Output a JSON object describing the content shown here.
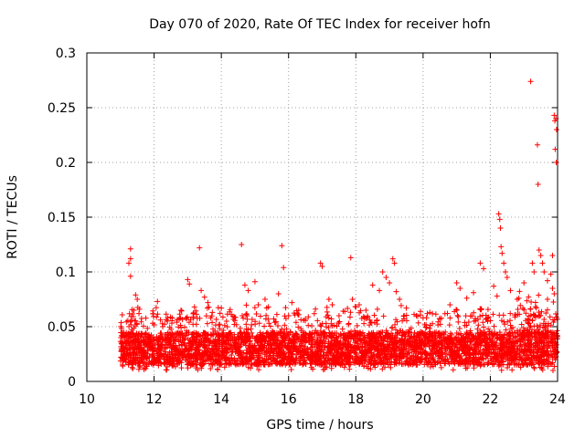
{
  "chart_data": {
    "type": "scatter",
    "title": "Day 070 of 2020, Rate Of TEC Index for receiver hofn",
    "xlabel": "GPS time / hours",
    "ylabel": "ROTI / TECUs",
    "xlim": [
      10,
      24
    ],
    "ylim": [
      0,
      0.3
    ],
    "xticks": [
      10,
      12,
      14,
      16,
      18,
      20,
      22,
      24
    ],
    "yticks": [
      0,
      0.05,
      0.1,
      0.15,
      0.2,
      0.25,
      0.3
    ],
    "xtick_labels": [
      "10",
      "12",
      "14",
      "16",
      "18",
      "20",
      "22",
      "24"
    ],
    "ytick_labels": [
      "0",
      "0.05",
      "0.1",
      "0.15",
      "0.2",
      "0.25",
      "0.3"
    ],
    "grid": true,
    "marker": "+",
    "series": [
      {
        "name": "ROTI",
        "color": "#ff0000",
        "dense_band": {
          "x_start": 11.0,
          "x_end": 24.0,
          "typical_low": 0.01,
          "typical_high": 0.05
        },
        "points": [
          [
            11.3,
            0.121
          ],
          [
            11.3,
            0.112
          ],
          [
            11.25,
            0.108
          ],
          [
            11.3,
            0.096
          ],
          [
            11.45,
            0.079
          ],
          [
            11.5,
            0.075
          ],
          [
            11.4,
            0.065
          ],
          [
            11.55,
            0.062
          ],
          [
            12.1,
            0.073
          ],
          [
            12.4,
            0.058
          ],
          [
            13.0,
            0.093
          ],
          [
            13.05,
            0.089
          ],
          [
            13.35,
            0.122
          ],
          [
            13.4,
            0.083
          ],
          [
            13.5,
            0.077
          ],
          [
            13.6,
            0.072
          ],
          [
            14.0,
            0.067
          ],
          [
            14.3,
            0.061
          ],
          [
            14.6,
            0.125
          ],
          [
            14.7,
            0.088
          ],
          [
            14.8,
            0.083
          ],
          [
            15.0,
            0.091
          ],
          [
            15.3,
            0.075
          ],
          [
            15.4,
            0.068
          ],
          [
            15.7,
            0.08
          ],
          [
            15.8,
            0.124
          ],
          [
            15.85,
            0.104
          ],
          [
            16.0,
            0.06
          ],
          [
            16.3,
            0.065
          ],
          [
            16.5,
            0.057
          ],
          [
            16.8,
            0.066
          ],
          [
            16.95,
            0.108
          ],
          [
            17.0,
            0.105
          ],
          [
            17.2,
            0.075
          ],
          [
            17.3,
            0.07
          ],
          [
            17.5,
            0.06
          ],
          [
            17.85,
            0.113
          ],
          [
            17.9,
            0.075
          ],
          [
            18.0,
            0.068
          ],
          [
            18.3,
            0.065
          ],
          [
            18.5,
            0.088
          ],
          [
            18.7,
            0.083
          ],
          [
            18.8,
            0.1
          ],
          [
            18.9,
            0.095
          ],
          [
            19.0,
            0.09
          ],
          [
            19.1,
            0.112
          ],
          [
            19.15,
            0.108
          ],
          [
            19.2,
            0.082
          ],
          [
            19.3,
            0.075
          ],
          [
            19.5,
            0.067
          ],
          [
            19.8,
            0.06
          ],
          [
            20.2,
            0.063
          ],
          [
            20.5,
            0.057
          ],
          [
            20.8,
            0.07
          ],
          [
            21.0,
            0.09
          ],
          [
            21.1,
            0.085
          ],
          [
            21.3,
            0.076
          ],
          [
            21.5,
            0.081
          ],
          [
            21.7,
            0.108
          ],
          [
            21.8,
            0.103
          ],
          [
            22.1,
            0.087
          ],
          [
            22.2,
            0.078
          ],
          [
            22.25,
            0.153
          ],
          [
            22.28,
            0.148
          ],
          [
            22.3,
            0.14
          ],
          [
            22.32,
            0.123
          ],
          [
            22.35,
            0.117
          ],
          [
            22.4,
            0.108
          ],
          [
            22.45,
            0.1
          ],
          [
            22.5,
            0.095
          ],
          [
            22.6,
            0.083
          ],
          [
            22.8,
            0.075
          ],
          [
            23.0,
            0.09
          ],
          [
            23.2,
            0.274
          ],
          [
            23.25,
            0.108
          ],
          [
            23.3,
            0.1
          ],
          [
            23.4,
            0.216
          ],
          [
            23.42,
            0.18
          ],
          [
            23.45,
            0.12
          ],
          [
            23.5,
            0.115
          ],
          [
            23.55,
            0.108
          ],
          [
            23.6,
            0.1
          ],
          [
            23.7,
            0.092
          ],
          [
            23.8,
            0.098
          ],
          [
            23.85,
            0.115
          ],
          [
            23.9,
            0.243
          ],
          [
            23.92,
            0.238
          ],
          [
            23.95,
            0.24
          ],
          [
            23.97,
            0.23
          ],
          [
            23.93,
            0.212
          ],
          [
            23.96,
            0.2
          ],
          [
            23.85,
            0.085
          ],
          [
            23.9,
            0.08
          ],
          [
            23.7,
            0.075
          ],
          [
            12.8,
            0.065
          ],
          [
            13.2,
            0.068
          ],
          [
            15.1,
            0.07
          ],
          [
            16.1,
            0.072
          ],
          [
            18.1,
            0.07
          ],
          [
            20.0,
            0.058
          ]
        ]
      }
    ]
  }
}
